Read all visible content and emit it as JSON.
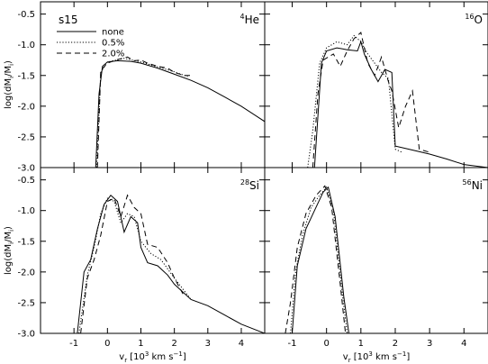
{
  "chart_data": {
    "type": "line",
    "model_label": "s15",
    "legend": {
      "placement": "top-left",
      "entries": [
        {
          "name": "none",
          "dash": "solid"
        },
        {
          "name": "0.5%",
          "dash": "dotted"
        },
        {
          "name": "2.0%",
          "dash": "dashed"
        }
      ]
    },
    "xlabel": "v",
    "xlabel_sub": "r",
    "xlabel_units": " [10",
    "xlabel_exp": "3",
    "xlabel_tail": " km s",
    "xlabel_exp2": "−1",
    "xlabel_close": "]",
    "ylabel": "log(dM",
    "ylabel_sub": "i",
    "ylabel_mid": "/M",
    "ylabel_sub2": "i",
    "ylabel_close": ")",
    "ylim": [
      -3.0,
      -0.3
    ],
    "yticks": [
      -3.0,
      -2.5,
      -2.0,
      -1.5,
      -1.0,
      -0.5
    ],
    "ytick_labels": [
      "-3.0",
      "-2.5",
      "-2.0",
      "-1.5",
      "-1.0",
      "-0.5"
    ],
    "panels": [
      {
        "title_sup": "4",
        "title": "He",
        "xlim": [
          -2.0,
          4.7
        ],
        "xticks": [
          -1,
          0,
          1,
          2,
          3,
          4
        ],
        "xtick_labels": [
          "-1",
          "0",
          "1",
          "2",
          "3",
          "4"
        ],
        "series": [
          {
            "name": "none",
            "dash": "solid",
            "x": [
              -0.35,
              -0.25,
              -0.15,
              0.0,
              0.3,
              0.7,
              1.0,
              1.5,
              2.0,
              2.5,
              3.0,
              3.5,
              4.0,
              4.7
            ],
            "y": [
              -3.0,
              -1.8,
              -1.35,
              -1.28,
              -1.26,
              -1.27,
              -1.3,
              -1.38,
              -1.48,
              -1.58,
              -1.7,
              -1.85,
              -2.0,
              -2.25
            ]
          },
          {
            "name": "0.5%",
            "dash": "dotted",
            "x": [
              -0.32,
              -0.2,
              0.0,
              0.5,
              1.0,
              1.5,
              2.0,
              2.4
            ],
            "y": [
              -3.0,
              -1.45,
              -1.28,
              -1.22,
              -1.28,
              -1.36,
              -1.44,
              -1.52
            ]
          },
          {
            "name": "2.0%",
            "dash": "dashed",
            "x": [
              -0.3,
              -0.2,
              0.0,
              0.3,
              0.6,
              0.8,
              1.0,
              1.2,
              1.5,
              1.8,
              2.0,
              2.3,
              2.5
            ],
            "y": [
              -3.0,
              -1.42,
              -1.3,
              -1.24,
              -1.2,
              -1.26,
              -1.25,
              -1.3,
              -1.35,
              -1.38,
              -1.45,
              -1.5,
              -1.5
            ]
          }
        ]
      },
      {
        "title_sup": "16",
        "title": "O",
        "xlim": [
          -1.8,
          4.7
        ],
        "xticks": [
          -1,
          0,
          1,
          2,
          3,
          4
        ],
        "xtick_labels": [
          "-1",
          "0",
          "1",
          "2",
          "3",
          "4"
        ],
        "series": [
          {
            "name": "none",
            "dash": "solid",
            "x": [
              -0.35,
              -0.15,
              0.0,
              0.3,
              0.6,
              0.9,
              1.0,
              1.1,
              1.3,
              1.5,
              1.7,
              1.9,
              2.0,
              2.4,
              3.0,
              3.5,
              4.0,
              4.7
            ],
            "y": [
              -3.0,
              -1.3,
              -1.1,
              -1.05,
              -1.08,
              -1.1,
              -0.95,
              -1.15,
              -1.4,
              -1.6,
              -1.4,
              -1.45,
              -2.65,
              -2.7,
              -2.78,
              -2.86,
              -2.95,
              -3.0
            ]
          },
          {
            "name": "0.5%",
            "dash": "dotted",
            "x": [
              -0.55,
              -0.4,
              -0.2,
              0.0,
              0.3,
              0.6,
              0.8,
              1.0,
              1.2,
              1.4,
              1.6,
              1.8,
              2.0,
              2.2
            ],
            "y": [
              -3.0,
              -2.4,
              -1.3,
              -1.05,
              -0.95,
              -1.0,
              -0.85,
              -0.95,
              -1.15,
              -1.3,
              -1.45,
              -1.55,
              -2.7,
              -2.75
            ]
          },
          {
            "name": "2.0%",
            "dash": "dashed",
            "x": [
              -0.4,
              -0.25,
              -0.1,
              0.2,
              0.4,
              0.6,
              0.8,
              1.0,
              1.2,
              1.4,
              1.6,
              1.8,
              1.9,
              2.1,
              2.3,
              2.5,
              2.7,
              3.0
            ],
            "y": [
              -3.0,
              -1.8,
              -1.25,
              -1.15,
              -1.35,
              -1.1,
              -0.9,
              -0.8,
              -1.3,
              -1.5,
              -1.2,
              -1.6,
              -1.75,
              -2.35,
              -2.0,
              -1.75,
              -2.7,
              -2.75
            ]
          }
        ]
      },
      {
        "title_sup": "28",
        "title": "Si",
        "xlim": [
          -2.0,
          4.7
        ],
        "xticks": [
          -1,
          0,
          1,
          2,
          3,
          4
        ],
        "xtick_labels": [
          "-1",
          "0",
          "1",
          "2",
          "3",
          "4"
        ],
        "series": [
          {
            "name": "none",
            "dash": "solid",
            "x": [
              -0.9,
              -0.7,
              -0.5,
              -0.3,
              -0.1,
              0.1,
              0.3,
              0.5,
              0.7,
              0.9,
              1.0,
              1.2,
              1.5,
              1.8,
              2.0,
              2.5,
              3.0,
              3.5,
              4.0,
              4.7
            ],
            "y": [
              -3.0,
              -2.0,
              -1.8,
              -1.3,
              -0.9,
              -0.75,
              -0.85,
              -1.35,
              -1.1,
              -1.2,
              -1.6,
              -1.85,
              -1.9,
              -2.05,
              -2.2,
              -2.45,
              -2.55,
              -2.7,
              -2.85,
              -3.0
            ]
          },
          {
            "name": "0.5%",
            "dash": "dotted",
            "x": [
              -0.85,
              -0.6,
              -0.4,
              -0.2,
              0.0,
              0.2,
              0.4,
              0.6,
              0.8,
              1.0,
              1.3,
              1.6,
              2.0,
              2.5
            ],
            "y": [
              -3.0,
              -2.05,
              -1.6,
              -1.05,
              -0.8,
              -0.85,
              -1.2,
              -1.05,
              -1.1,
              -1.5,
              -1.7,
              -1.8,
              -2.1,
              -2.45
            ]
          },
          {
            "name": "2.0%",
            "dash": "dashed",
            "x": [
              -0.8,
              -0.6,
              -0.4,
              -0.2,
              0.0,
              0.2,
              0.4,
              0.6,
              0.8,
              1.0,
              1.2,
              1.5,
              1.8,
              2.0,
              2.3
            ],
            "y": [
              -3.0,
              -2.1,
              -1.8,
              -1.4,
              -0.85,
              -0.8,
              -1.1,
              -0.75,
              -0.95,
              -1.05,
              -1.55,
              -1.6,
              -1.85,
              -2.1,
              -2.4
            ]
          }
        ]
      },
      {
        "title_sup": "56",
        "title": "Ni",
        "xlim": [
          -1.8,
          4.7
        ],
        "xticks": [
          -1,
          0,
          1,
          2,
          3,
          4
        ],
        "xtick_labels": [
          "-1",
          "0",
          "1",
          "2",
          "3",
          "4"
        ],
        "series": [
          {
            "name": "none",
            "dash": "solid",
            "x": [
              -1.0,
              -0.85,
              -0.6,
              -0.35,
              -0.1,
              0.05,
              0.25,
              0.5,
              0.65
            ],
            "y": [
              -3.0,
              -1.9,
              -1.3,
              -1.0,
              -0.7,
              -0.62,
              -1.1,
              -2.4,
              -3.0
            ]
          },
          {
            "name": "0.5%",
            "dash": "dotted",
            "x": [
              -1.05,
              -0.9,
              -0.7,
              -0.45,
              -0.2,
              0.0,
              0.2,
              0.45,
              0.6
            ],
            "y": [
              -3.0,
              -2.0,
              -1.4,
              -0.95,
              -0.75,
              -0.62,
              -1.0,
              -2.3,
              -3.0
            ]
          },
          {
            "name": "2.0%",
            "dash": "dashed",
            "x": [
              -1.2,
              -1.05,
              -0.85,
              -0.6,
              -0.3,
              -0.05,
              0.15,
              0.4,
              0.55
            ],
            "y": [
              -3.0,
              -2.5,
              -1.6,
              -1.05,
              -0.75,
              -0.6,
              -0.95,
              -2.2,
              -3.0
            ]
          }
        ]
      }
    ]
  }
}
